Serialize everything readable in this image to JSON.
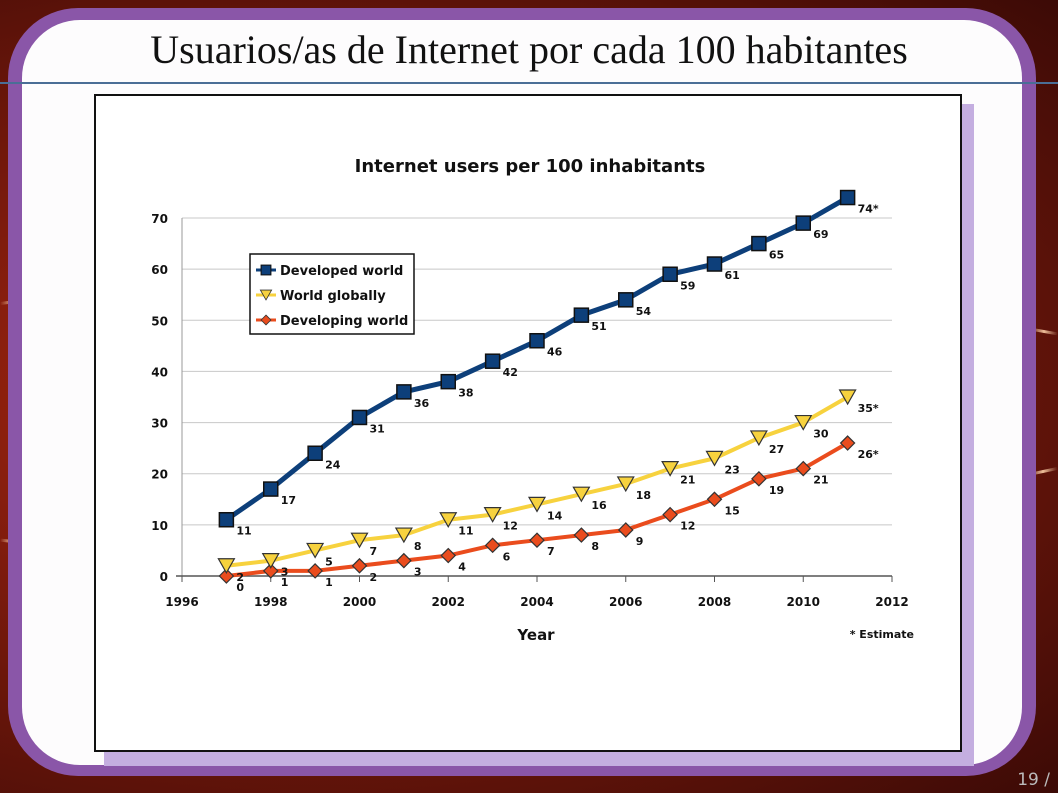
{
  "slide": {
    "title": "Usuarios/as de Internet por cada 100 habitantes",
    "page_number": "19 /"
  },
  "chart_data": {
    "type": "line",
    "title": "Internet users per 100 inhabitants",
    "xlabel": "Year",
    "ylabel": "",
    "xlim": [
      1996,
      2012
    ],
    "ylim": [
      0,
      70
    ],
    "x_ticks": [
      1996,
      1998,
      2000,
      2002,
      2004,
      2006,
      2008,
      2010,
      2012
    ],
    "y_ticks": [
      0,
      10,
      20,
      30,
      40,
      50,
      60,
      70
    ],
    "grid": true,
    "legend_position": "top-left",
    "footnote": "* Estimate",
    "x": [
      1997,
      1998,
      1999,
      2000,
      2001,
      2002,
      2003,
      2004,
      2005,
      2006,
      2007,
      2008,
      2009,
      2010,
      2011
    ],
    "series": [
      {
        "name": "Developed world",
        "color": "#0d3f7a",
        "marker": "square",
        "values": [
          11,
          17,
          24,
          31,
          36,
          38,
          42,
          46,
          51,
          54,
          59,
          61,
          65,
          69,
          74
        ],
        "labels": [
          "11",
          "17",
          "24",
          "31",
          "36",
          "38",
          "42",
          "46",
          "51",
          "54",
          "59",
          "61",
          "65",
          "69",
          "74*"
        ]
      },
      {
        "name": "World globally",
        "color": "#f7d23e",
        "marker": "triangle-down",
        "values": [
          2,
          3,
          5,
          7,
          8,
          11,
          12,
          14,
          16,
          18,
          21,
          23,
          27,
          30,
          35
        ],
        "labels": [
          "2",
          "3",
          "5",
          "7",
          "8",
          "11",
          "12",
          "14",
          "16",
          "18",
          "21",
          "23",
          "27",
          "30",
          "35*"
        ]
      },
      {
        "name": "Developing world",
        "color": "#ea4c1d",
        "marker": "diamond",
        "values": [
          0,
          1,
          1,
          2,
          3,
          4,
          6,
          7,
          8,
          9,
          12,
          15,
          19,
          21,
          26
        ],
        "labels": [
          "0",
          "1",
          "1",
          "2",
          "3",
          "4",
          "6",
          "7",
          "8",
          "9",
          "12",
          "15",
          "19",
          "21",
          "26*"
        ]
      }
    ]
  }
}
